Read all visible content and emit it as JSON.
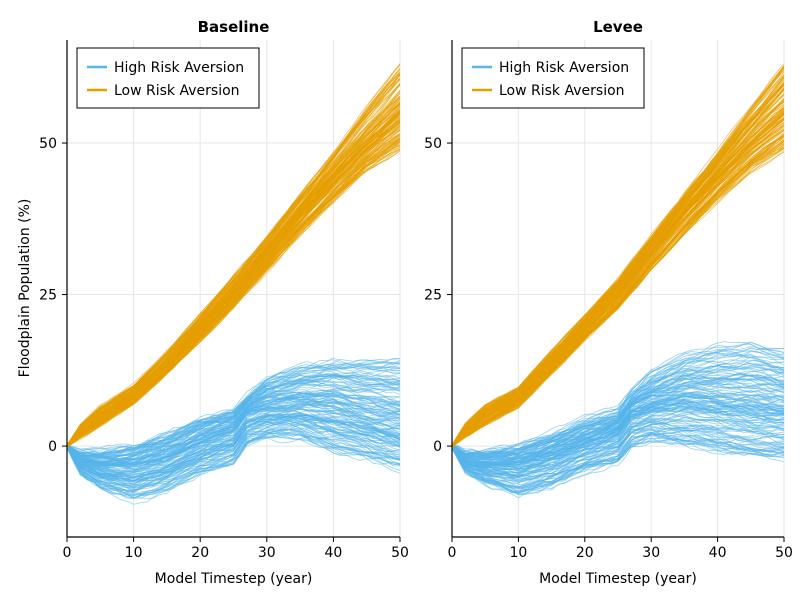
{
  "chart_data": [
    {
      "type": "line",
      "title": "Baseline",
      "xlabel": "Model Timestep (year)",
      "ylabel": "Floodplain Population (%)",
      "xlim": [
        0,
        50
      ],
      "ylim": [
        -15,
        67
      ],
      "xticks": [
        "0",
        "10",
        "20",
        "30",
        "40",
        "50"
      ],
      "yticks": [
        "0",
        "25",
        "50"
      ],
      "grid": true,
      "legend_position": "top-left",
      "series": [
        {
          "name": "High Risk Aversion",
          "color": "#56b4e9",
          "x": [
            0,
            2,
            5,
            10,
            15,
            20,
            25,
            27,
            30,
            35,
            40,
            45,
            50
          ],
          "values": [
            0,
            -2.5,
            -3.5,
            -3.5,
            -2.0,
            0.5,
            2.5,
            5.5,
            6.5,
            7.0,
            6.5,
            5.0,
            4.0
          ],
          "band_low": [
            0,
            -4.5,
            -7,
            -9,
            -7.5,
            -4.5,
            -3,
            0,
            1,
            1,
            -1,
            -2,
            -4
          ],
          "band_high": [
            0,
            -1,
            -1,
            0,
            2,
            4.5,
            6,
            8,
            11,
            13,
            14,
            14,
            14
          ]
        },
        {
          "name": "Low Risk Aversion",
          "color": "#e69f00",
          "x": [
            0,
            2,
            5,
            10,
            15,
            20,
            25,
            30,
            35,
            40,
            45,
            50
          ],
          "values": [
            0,
            2.5,
            5.0,
            8.5,
            13.5,
            19.5,
            25.5,
            32,
            38.5,
            44.5,
            50,
            55
          ],
          "band_low": [
            0,
            1.5,
            3.5,
            7,
            12,
            17.5,
            23,
            29,
            35,
            40.5,
            45.5,
            49
          ],
          "band_high": [
            0,
            3.5,
            6.5,
            10,
            15.5,
            21.5,
            28,
            34.5,
            41.5,
            48.5,
            56,
            63
          ]
        }
      ]
    },
    {
      "type": "line",
      "title": "Levee",
      "xlabel": "Model Timestep (year)",
      "ylabel": "",
      "xlim": [
        0,
        50
      ],
      "ylim": [
        -15,
        67
      ],
      "xticks": [
        "0",
        "10",
        "20",
        "30",
        "40",
        "50"
      ],
      "yticks": [
        "0",
        "25",
        "50"
      ],
      "grid": true,
      "legend_position": "top-left",
      "series": [
        {
          "name": "High Risk Aversion",
          "color": "#56b4e9",
          "x": [
            0,
            2,
            5,
            10,
            15,
            20,
            25,
            27,
            30,
            35,
            40,
            45,
            50
          ],
          "values": [
            0,
            -2.5,
            -3.0,
            -3.0,
            -1.5,
            0.5,
            2.5,
            5.5,
            6.5,
            7.5,
            7.0,
            6.5,
            6.0
          ],
          "band_low": [
            0,
            -4,
            -6,
            -8,
            -6.5,
            -4,
            -2.5,
            0,
            1,
            0,
            -1,
            -1.5,
            -2
          ],
          "band_high": [
            0,
            -1,
            -1,
            0,
            2,
            4.5,
            6,
            9,
            12,
            15,
            16.5,
            17,
            16
          ]
        },
        {
          "name": "Low Risk Aversion",
          "color": "#e69f00",
          "x": [
            0,
            2,
            5,
            10,
            15,
            20,
            25,
            30,
            35,
            40,
            45,
            50
          ],
          "values": [
            0,
            2.5,
            5.0,
            8.0,
            13.5,
            19.5,
            25.0,
            32,
            38.5,
            44.5,
            50,
            55
          ],
          "band_low": [
            0,
            1.5,
            3.5,
            6.5,
            12,
            17.5,
            22.5,
            29,
            35,
            40.5,
            45.5,
            49
          ],
          "band_high": [
            0,
            3.5,
            6.5,
            9.5,
            15.5,
            21.5,
            27.5,
            34.5,
            41.5,
            48.5,
            56,
            63
          ]
        }
      ]
    }
  ]
}
